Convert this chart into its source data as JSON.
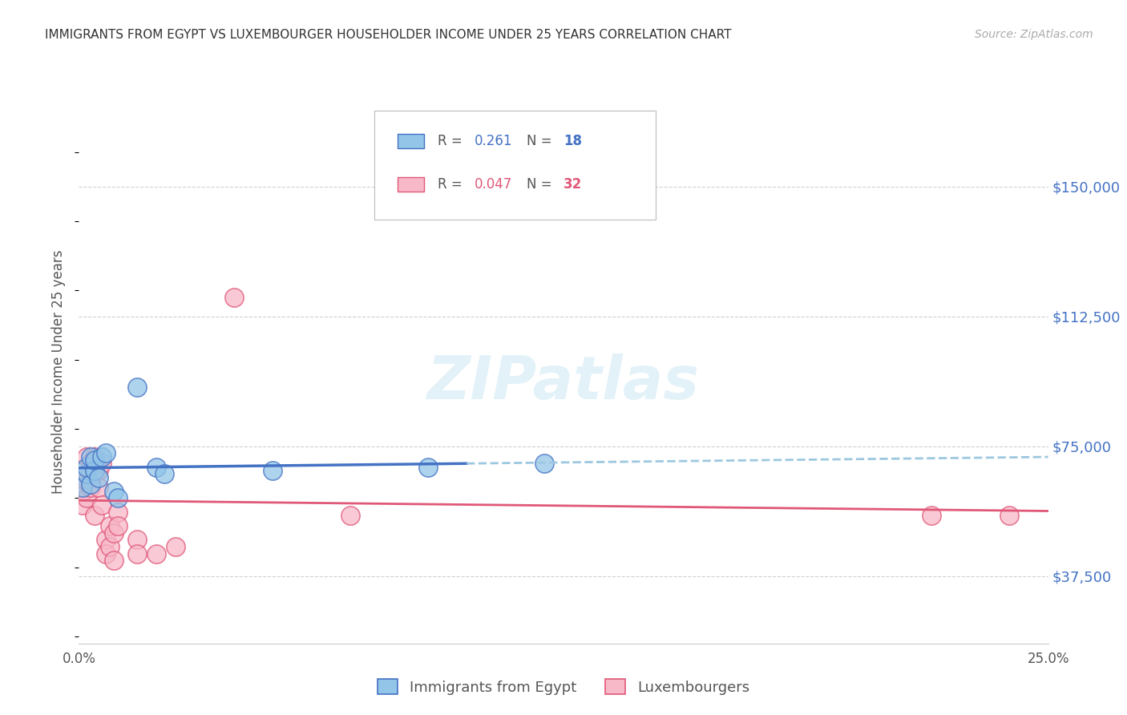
{
  "title": "IMMIGRANTS FROM EGYPT VS LUXEMBOURGER HOUSEHOLDER INCOME UNDER 25 YEARS CORRELATION CHART",
  "source": "Source: ZipAtlas.com",
  "ylabel": "Householder Income Under 25 years",
  "legend_label1": "Immigrants from Egypt",
  "legend_label2": "Luxembourgers",
  "R1": "0.261",
  "N1": "18",
  "R2": "0.047",
  "N2": "32",
  "yticks": [
    37500,
    75000,
    112500,
    150000
  ],
  "ytick_labels": [
    "$37,500",
    "$75,000",
    "$112,500",
    "$150,000"
  ],
  "xlim": [
    0.0,
    0.25
  ],
  "ylim": [
    18000,
    175000
  ],
  "color_blue": "#92c5e8",
  "color_pink": "#f7b8c8",
  "line_blue": "#4472c4",
  "line_pink": "#e05878",
  "line_dashed_color": "#9dc8e0",
  "watermark": "ZIPatlas",
  "egypt_points": [
    [
      0.001,
      63000
    ],
    [
      0.002,
      67000
    ],
    [
      0.002,
      69000
    ],
    [
      0.003,
      72000
    ],
    [
      0.003,
      64000
    ],
    [
      0.004,
      68000
    ],
    [
      0.004,
      71000
    ],
    [
      0.005,
      66000
    ],
    [
      0.006,
      72000
    ],
    [
      0.007,
      73000
    ],
    [
      0.009,
      62000
    ],
    [
      0.01,
      60000
    ],
    [
      0.015,
      92000
    ],
    [
      0.02,
      69000
    ],
    [
      0.022,
      67000
    ],
    [
      0.05,
      68000
    ],
    [
      0.09,
      69000
    ],
    [
      0.12,
      70000
    ]
  ],
  "lux_points": [
    [
      0.001,
      64000
    ],
    [
      0.001,
      62000
    ],
    [
      0.001,
      58000
    ],
    [
      0.002,
      72000
    ],
    [
      0.002,
      65000
    ],
    [
      0.002,
      60000
    ],
    [
      0.003,
      68000
    ],
    [
      0.003,
      70000
    ],
    [
      0.003,
      63000
    ],
    [
      0.004,
      72000
    ],
    [
      0.004,
      67000
    ],
    [
      0.004,
      55000
    ],
    [
      0.005,
      68000
    ],
    [
      0.005,
      63000
    ],
    [
      0.006,
      70000
    ],
    [
      0.006,
      58000
    ],
    [
      0.007,
      48000
    ],
    [
      0.007,
      44000
    ],
    [
      0.008,
      52000
    ],
    [
      0.008,
      46000
    ],
    [
      0.009,
      50000
    ],
    [
      0.009,
      42000
    ],
    [
      0.01,
      56000
    ],
    [
      0.01,
      52000
    ],
    [
      0.015,
      48000
    ],
    [
      0.015,
      44000
    ],
    [
      0.02,
      44000
    ],
    [
      0.025,
      46000
    ],
    [
      0.04,
      118000
    ],
    [
      0.07,
      55000
    ],
    [
      0.22,
      55000
    ],
    [
      0.24,
      55000
    ]
  ]
}
